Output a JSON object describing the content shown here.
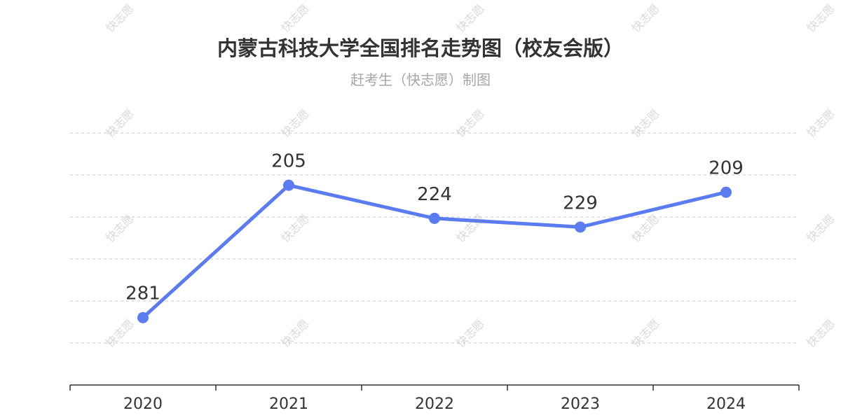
{
  "title": "内蒙古科技大学全国排名走势图（校友会版）",
  "subtitle": "赶考生（快志愿）制图",
  "watermark": "快志愿",
  "colors": {
    "line": "#5b7cf0",
    "marker": "#5b7cf0",
    "grid": "#c8c8c8",
    "text": "#333333",
    "subtitle": "#a6a6a6"
  },
  "chart_data": {
    "type": "line",
    "categories": [
      "2020",
      "2021",
      "2022",
      "2023",
      "2024"
    ],
    "series": [
      {
        "values": [
          281,
          205,
          224,
          229,
          209
        ]
      }
    ],
    "y_reversed": true,
    "ylim": [
      301,
      175
    ],
    "grid": "horizontal-dashed",
    "legend": "none",
    "data_labels": true
  }
}
